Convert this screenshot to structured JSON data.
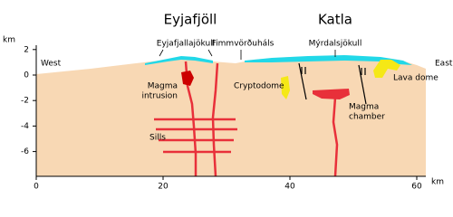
{
  "titles": {
    "west_volcano": "Eyjafjöll",
    "east_volcano": "Katla"
  },
  "axes": {
    "y": {
      "label": "km",
      "ticks": [
        2,
        0,
        -2,
        -4,
        -6
      ]
    },
    "x": {
      "label": "km",
      "ticks": [
        0,
        20,
        40,
        60
      ]
    }
  },
  "labels": {
    "west": "West",
    "east": "East",
    "glacier_west": "Eyjafjallajökull",
    "pass": "Fimmvörðuháls",
    "glacier_east": "Mýrdalsjökull",
    "magma_intrusion": [
      "Magma",
      "intrusion"
    ],
    "cryptodome": "Cryptodome",
    "lava_dome": "Lava dome",
    "magma_chamber": [
      "Magma",
      "chamber"
    ],
    "sills": "Sills"
  }
}
